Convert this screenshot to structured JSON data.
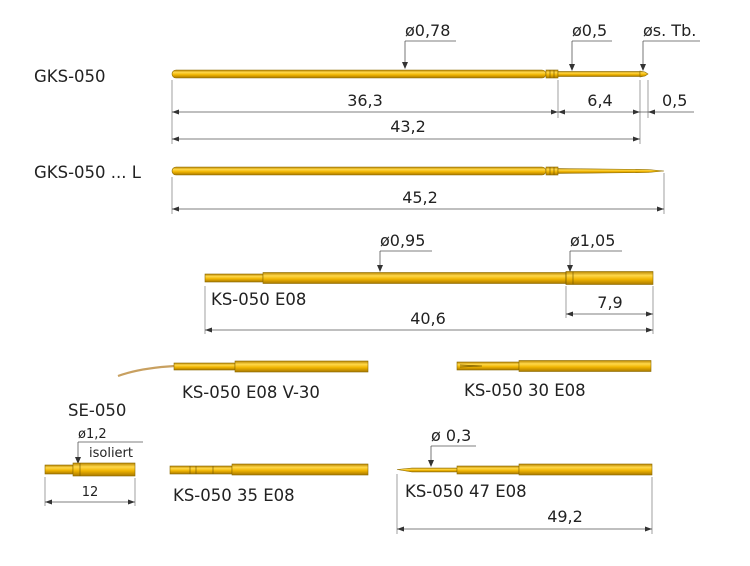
{
  "colors": {
    "gold_light": "#ffd84a",
    "gold": "#f0b400",
    "gold_dark": "#b88400",
    "line": "#555555"
  },
  "labels": {
    "gks050": "GKS-050",
    "gks050l": "GKS-050 ... L",
    "ks050_e08": "KS-050  E08",
    "ks050_e08_v30": "KS-050 E08  V-30",
    "ks050_30_e08": "KS-050 30 E08",
    "se050": "SE-050",
    "ks050_35_e08": "KS-050  35 E08",
    "ks050_47_e08": "KS-050 47 E08"
  },
  "dims": {
    "d078": "ø0,78",
    "d05": "ø0,5",
    "dstb": "øs. Tb.",
    "l363": "36,3",
    "l64": "6,4",
    "l05": "0,5",
    "l432": "43,2",
    "l452": "45,2",
    "d095": "ø0,95",
    "d105": "ø1,05",
    "l79": "7,9",
    "l406": "40,6",
    "d12": "ø1,2",
    "isoliert": "isoliert",
    "l12": "12",
    "d03": "ø 0,3",
    "l492": "49,2"
  }
}
